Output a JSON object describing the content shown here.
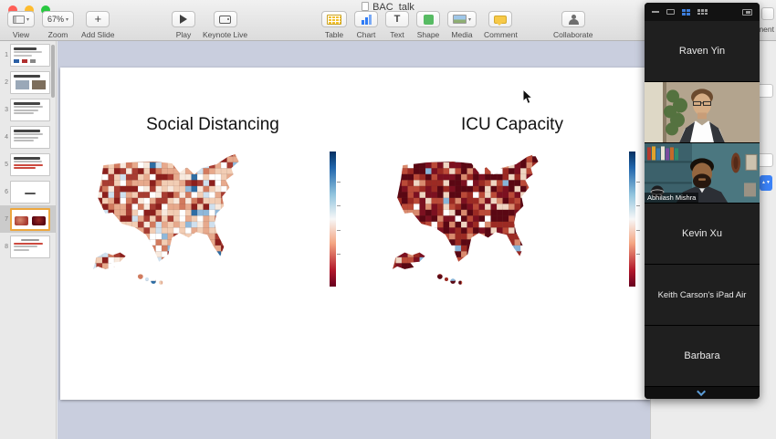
{
  "colors": {
    "canvas_background": "#c9cede",
    "toolbar_background": "#ececec",
    "slide_panel_background": "#e9e9e9",
    "zoom_panel_background": "#161616",
    "thumbnail_selection_border": "#eda73f",
    "active_speaker_border": "#c9a53a",
    "accent_blue": "#3d7edb"
  },
  "window": {
    "traffic_lights": [
      "close",
      "minimize",
      "fullscreen"
    ]
  },
  "toolbar": {
    "title": "BAC_talk",
    "document_button_partial": "ment",
    "groups": {
      "view": [
        {
          "name": "view-button",
          "icon": "view",
          "label": "View",
          "has_chevron": true
        },
        {
          "name": "zoom-button",
          "icon": "zoom",
          "label": "Zoom",
          "value": "67%",
          "has_chevron": true
        },
        {
          "name": "add-slide-button",
          "icon": "plus",
          "label": "Add Slide"
        }
      ],
      "play": [
        {
          "name": "play-button",
          "icon": "play",
          "label": "Play"
        },
        {
          "name": "keynote-live-button",
          "icon": "live",
          "label": "Keynote Live"
        }
      ],
      "insert": [
        {
          "name": "table-button",
          "icon": "table",
          "label": "Table"
        },
        {
          "name": "chart-button",
          "icon": "chart",
          "label": "Chart"
        },
        {
          "name": "text-button",
          "icon": "text",
          "label": "Text"
        },
        {
          "name": "shape-button",
          "icon": "shape",
          "label": "Shape"
        },
        {
          "name": "media-button",
          "icon": "media",
          "label": "Media",
          "has_chevron": true
        },
        {
          "name": "comment-button",
          "icon": "comment",
          "label": "Comment"
        }
      ],
      "collaborate": [
        {
          "name": "collaborate-button",
          "icon": "collaborate",
          "label": "Collaborate"
        }
      ]
    }
  },
  "slides_panel": {
    "selected_slide": 7,
    "slides": [
      {
        "number": 1,
        "kind": "title-logos"
      },
      {
        "number": 2,
        "kind": "photos"
      },
      {
        "number": 3,
        "kind": "text"
      },
      {
        "number": 4,
        "kind": "text"
      },
      {
        "number": 5,
        "kind": "text-red"
      },
      {
        "number": 6,
        "kind": "center"
      },
      {
        "number": 7,
        "kind": "maps"
      },
      {
        "number": 8,
        "kind": "text-red2"
      }
    ]
  },
  "chart_data": [
    {
      "type": "choropleth",
      "title": "Social Distancing",
      "region": "United States counties with Alaska and Hawaii insets",
      "colormap": "diverging blue-white-red (blue top of scale, dark red bottom)",
      "colorbar": {
        "orientation": "vertical",
        "top": "dark blue",
        "middle": "white",
        "bottom": "dark red",
        "tick_count": 4,
        "tick_labels_legible": false
      },
      "pattern": "mix of light-to-dark red counties with scattered light blue counties; large dark-red clusters along the West Coast",
      "west_dark_bias": true,
      "seed": 42,
      "palette": [
        {
          "color": "#8c1f1c",
          "weight": 2
        },
        {
          "color": "#a83c32",
          "weight": 3
        },
        {
          "color": "#d27a5e",
          "weight": 4
        },
        {
          "color": "#e7a98c",
          "weight": 5
        },
        {
          "color": "#f2cdb4",
          "weight": 4
        },
        {
          "color": "#f8e9dd",
          "weight": 3
        },
        {
          "color": "#ffffff",
          "weight": 3
        },
        {
          "color": "#cfe0ee",
          "weight": 1.5
        },
        {
          "color": "#8fb8da",
          "weight": 1
        },
        {
          "color": "#2e6da4",
          "weight": 0.5
        }
      ]
    },
    {
      "type": "choropleth",
      "title": "ICU Capacity",
      "region": "United States counties with Alaska and Hawaii insets",
      "colormap": "diverging blue-white-red, values skewed to dark red",
      "colorbar": {
        "orientation": "vertical",
        "top": "dark blue",
        "middle": "white",
        "bottom": "dark red",
        "tick_count": 4,
        "tick_labels_legible": false
      },
      "pattern": "predominantly very dark red counties with scattered white/cream cells and rare blue dots",
      "west_dark_bias": false,
      "seed": 99,
      "palette": [
        {
          "color": "#5a0713",
          "weight": 6
        },
        {
          "color": "#7c1020",
          "weight": 4
        },
        {
          "color": "#9c2a23",
          "weight": 3
        },
        {
          "color": "#bb4a38",
          "weight": 2.5
        },
        {
          "color": "#d98a6e",
          "weight": 1.5
        },
        {
          "color": "#efd5c2",
          "weight": 1.5
        },
        {
          "color": "#ffffff",
          "weight": 1.2
        },
        {
          "color": "#88b4d8",
          "weight": 0.3
        }
      ]
    }
  ],
  "zoom_panel": {
    "header_icons": [
      "minimize-icon",
      "speaker-view-icon",
      "gallery-view-icon",
      "grid-view-icon",
      "pip-icon"
    ],
    "active_view": "gallery-view-icon",
    "participants": [
      {
        "type": "name",
        "name": "Raven Yin"
      },
      {
        "type": "video",
        "name": "",
        "video": "man-glasses-plant"
      },
      {
        "type": "video",
        "name": "Abhilash Mishra",
        "video": "man-beard-bookshelf",
        "active_speaker": true
      },
      {
        "type": "name",
        "name": "Kevin Xu"
      },
      {
        "type": "name",
        "name": "Keith Carson's iPad Air"
      },
      {
        "type": "name",
        "name": "Barbara"
      }
    ]
  }
}
